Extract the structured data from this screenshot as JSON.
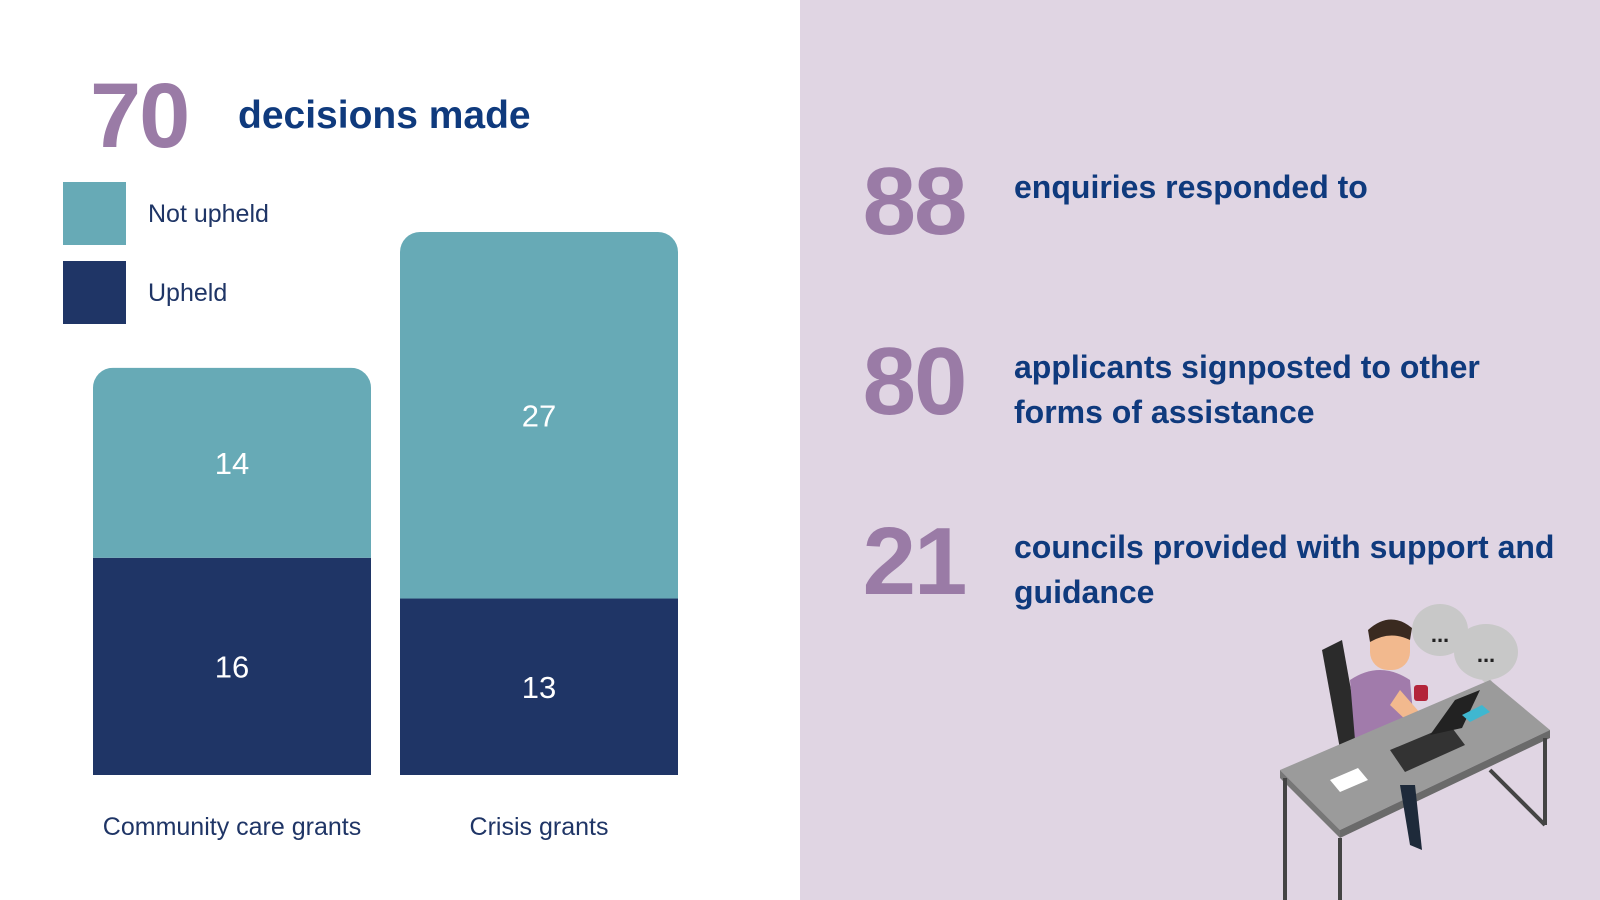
{
  "headline": {
    "number": 70,
    "text": "decisions made"
  },
  "chart_data": {
    "type": "stacked_bar",
    "categories": [
      "Community care grants",
      "Crisis grants"
    ],
    "series": [
      {
        "name": "Upheld",
        "color": "#1f3566",
        "values": [
          16,
          13
        ]
      },
      {
        "name": "Not upheld",
        "color": "#67aab6",
        "values": [
          14,
          27
        ]
      }
    ]
  },
  "stats": [
    {
      "number": 88,
      "text": "enquiries responded to"
    },
    {
      "number": 80,
      "text": "applicants signposted to other forms of assistance"
    },
    {
      "number": 21,
      "text": "councils provided with support and guidance"
    }
  ],
  "illustration": {
    "bubbles": [
      "...",
      "..."
    ]
  }
}
